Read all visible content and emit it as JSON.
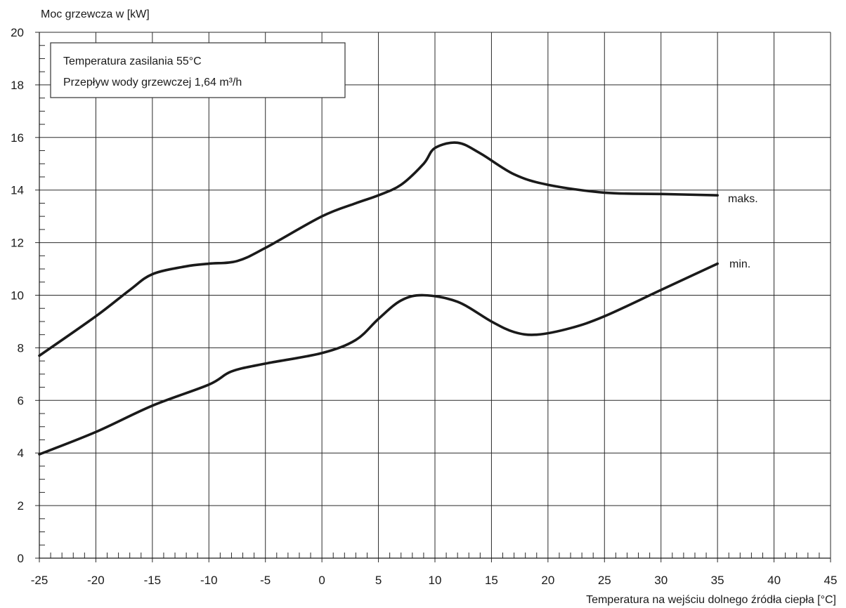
{
  "chart_data": {
    "type": "line",
    "ylabel": "Moc grzewcza w [kW]",
    "xlabel": "Temperatura na wejściu dolnego źródła ciepła [°C]",
    "xlim": [
      -25,
      45
    ],
    "ylim": [
      0,
      20
    ],
    "x_ticks": [
      -25,
      -20,
      -15,
      -10,
      -5,
      0,
      5,
      10,
      15,
      20,
      25,
      30,
      35,
      40,
      45
    ],
    "y_ticks": [
      0,
      2,
      4,
      6,
      8,
      10,
      12,
      14,
      16,
      18,
      20
    ],
    "x_minor_step": 1,
    "y_minor_step": 0.5,
    "grid": true,
    "legend": {
      "position": "top-left",
      "lines": [
        "Temperatura zasilania 55°C",
        "Przepływ wody grzewczej 1,64 m³/h"
      ]
    },
    "series": [
      {
        "name": "maks.",
        "x": [
          -25,
          -20,
          -17,
          -15,
          -12,
          -10,
          -7.5,
          -5,
          0,
          3,
          5,
          7,
          9,
          10,
          12,
          14,
          17,
          20,
          25,
          30,
          35
        ],
        "y": [
          7.7,
          9.2,
          10.2,
          10.8,
          11.1,
          11.2,
          11.3,
          11.8,
          13.0,
          13.5,
          13.8,
          14.2,
          15.0,
          15.6,
          15.8,
          15.4,
          14.6,
          14.2,
          13.9,
          13.85,
          13.8
        ]
      },
      {
        "name": "min.",
        "x": [
          -25,
          -20,
          -15,
          -10,
          -8,
          -5,
          0,
          3,
          5,
          7,
          9,
          12,
          15,
          17,
          19,
          22,
          25,
          30,
          35
        ],
        "y": [
          3.95,
          4.8,
          5.8,
          6.6,
          7.1,
          7.4,
          7.8,
          8.3,
          9.1,
          9.8,
          10.0,
          9.75,
          9.0,
          8.6,
          8.5,
          8.75,
          9.2,
          10.2,
          11.2
        ]
      }
    ]
  }
}
